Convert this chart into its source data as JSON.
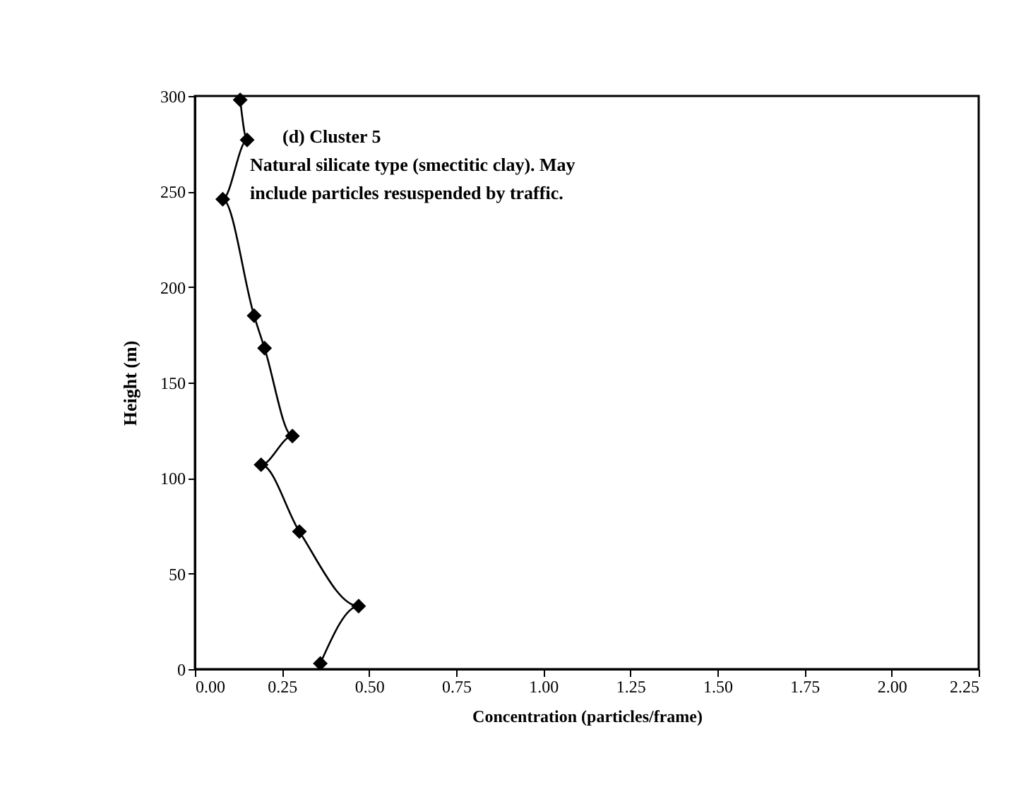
{
  "chart_data": {
    "type": "line",
    "xlabel": "Concentration (particles/frame)",
    "ylabel": "Height (m)",
    "annotations": [
      "(d)  Cluster 5",
      "Natural silicate type (smectitic clay).  May",
      "include particles resuspended by traffic."
    ],
    "series": [
      {
        "color": "#000000",
        "x": [
          0.36,
          0.47,
          0.3,
          0.19,
          0.28,
          0.2,
          0.17,
          0.08,
          0.15,
          0.13
        ],
        "values": [
          3,
          33,
          72,
          107,
          122,
          168,
          185,
          246,
          277,
          298
        ]
      }
    ],
    "xlim": [
      0,
      2.25
    ],
    "xticks": [
      {
        "value": 0,
        "label": "0.00"
      },
      {
        "value": 0.25,
        "label": "0.25"
      },
      {
        "value": 0.5,
        "label": "0.50"
      },
      {
        "value": 0.75,
        "label": "0.75"
      },
      {
        "value": 1,
        "label": "1.00"
      },
      {
        "value": 1.25,
        "label": "1.25"
      },
      {
        "value": 1.5,
        "label": "1.50"
      },
      {
        "value": 1.75,
        "label": "1.75"
      },
      {
        "value": 2,
        "label": "2.00"
      },
      {
        "value": 2.25,
        "label": "2.25"
      }
    ],
    "ylim": [
      0,
      300
    ],
    "yticks": [
      0,
      50,
      100,
      150,
      200,
      250,
      300
    ],
    "marker": "diamond",
    "line_style": "solid",
    "grid": false
  }
}
